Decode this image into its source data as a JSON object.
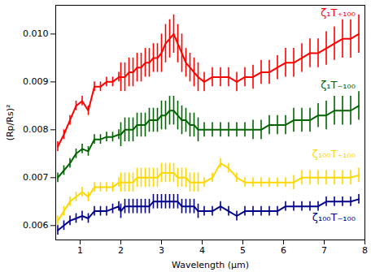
{
  "chart_data": {
    "type": "line",
    "x_label": "Wavelength (μm)",
    "y_label": "(Rp/Rs)²",
    "xlim": [
      0.4,
      8
    ],
    "ylim": [
      0.0057,
      0.0106
    ],
    "xticks": [
      1,
      2,
      3,
      4,
      5,
      6,
      7,
      8
    ],
    "yticks": [
      0.006,
      0.007,
      0.008,
      0.009,
      {
        "value": 0.01,
        "label": "0.010"
      }
    ],
    "grid": false,
    "x": [
      0.45,
      0.6,
      0.75,
      0.9,
      1.05,
      1.2,
      1.35,
      1.5,
      1.65,
      1.8,
      1.95,
      2.0,
      2.1,
      2.2,
      2.3,
      2.4,
      2.5,
      2.6,
      2.7,
      2.8,
      2.9,
      3.0,
      3.1,
      3.2,
      3.3,
      3.4,
      3.5,
      3.6,
      3.7,
      3.8,
      3.9,
      4.05,
      4.25,
      4.45,
      4.65,
      4.85,
      5.05,
      5.25,
      5.45,
      5.65,
      5.85,
      6.05,
      6.25,
      6.45,
      6.65,
      6.85,
      7.05,
      7.25,
      7.45,
      7.65,
      7.85
    ],
    "series": [
      {
        "name": "ζ₁T₊₁₀₀",
        "color": "#ff0000",
        "values": [
          0.00765,
          0.0079,
          0.0082,
          0.0085,
          0.0086,
          0.0084,
          0.0089,
          0.0089,
          0.009,
          0.009,
          0.0091,
          0.0091,
          0.0091,
          0.0092,
          0.0092,
          0.0093,
          0.0093,
          0.0094,
          0.0094,
          0.0095,
          0.0095,
          0.0096,
          0.0098,
          0.0099,
          0.01,
          0.0098,
          0.0096,
          0.0094,
          0.0093,
          0.0092,
          0.0091,
          0.009,
          0.0091,
          0.0091,
          0.0091,
          0.009,
          0.0091,
          0.0091,
          0.0092,
          0.0092,
          0.0093,
          0.0094,
          0.0094,
          0.0095,
          0.0096,
          0.0096,
          0.0097,
          0.0098,
          0.0099,
          0.0099,
          0.01
        ],
        "errors": [
          0.0001,
          0.0001,
          0.0001,
          0.0001,
          0.0001,
          0.0001,
          0.0001,
          0.0001,
          0.0001,
          0.0001,
          0.0001,
          0.0003,
          0.0003,
          0.0003,
          0.0003,
          0.0003,
          0.0003,
          0.0003,
          0.0003,
          0.0003,
          0.0003,
          0.0004,
          0.0004,
          0.0004,
          0.0004,
          0.0004,
          0.0004,
          0.0003,
          0.0003,
          0.0003,
          0.0003,
          0.0002,
          0.0002,
          0.0002,
          0.0002,
          0.0002,
          0.0002,
          0.00025,
          0.00025,
          0.00025,
          0.00025,
          0.0003,
          0.0003,
          0.0003,
          0.0003,
          0.0003,
          0.00035,
          0.00035,
          0.0004,
          0.0004,
          0.0004
        ]
      },
      {
        "name": "ζ₁T₋₁₀₀",
        "color": "#006400",
        "values": [
          0.007,
          0.00715,
          0.0073,
          0.0075,
          0.0076,
          0.00755,
          0.0078,
          0.0078,
          0.00785,
          0.00785,
          0.0079,
          0.0079,
          0.008,
          0.008,
          0.008,
          0.0081,
          0.0081,
          0.0081,
          0.0082,
          0.0082,
          0.0082,
          0.0083,
          0.0083,
          0.0084,
          0.0084,
          0.0083,
          0.0082,
          0.0082,
          0.0081,
          0.0081,
          0.008,
          0.008,
          0.008,
          0.008,
          0.008,
          0.008,
          0.008,
          0.008,
          0.008,
          0.0081,
          0.0081,
          0.0081,
          0.0082,
          0.0082,
          0.0082,
          0.0083,
          0.0083,
          0.0084,
          0.0084,
          0.0084,
          0.0085
        ],
        "errors": [
          0.0001,
          0.0001,
          0.0001,
          0.0001,
          0.0001,
          0.0001,
          0.0001,
          0.0001,
          0.0001,
          0.0001,
          0.0001,
          0.00025,
          0.00025,
          0.00025,
          0.00025,
          0.00025,
          0.00025,
          0.00025,
          0.00025,
          0.00025,
          0.00025,
          0.0003,
          0.0003,
          0.0003,
          0.0003,
          0.0003,
          0.0003,
          0.00025,
          0.00025,
          0.00025,
          0.00025,
          0.00015,
          0.00015,
          0.00015,
          0.00015,
          0.00015,
          0.00015,
          0.0002,
          0.0002,
          0.0002,
          0.0002,
          0.0002,
          0.00025,
          0.00025,
          0.00025,
          0.00025,
          0.0003,
          0.0003,
          0.0003,
          0.0003,
          0.0003
        ]
      },
      {
        "name": "ζ₁₀₀T₊₁₀₀",
        "color": "#ffd700",
        "values": [
          0.0061,
          0.0063,
          0.0065,
          0.0066,
          0.0067,
          0.0066,
          0.0068,
          0.0068,
          0.0068,
          0.0068,
          0.0069,
          0.0069,
          0.0069,
          0.0069,
          0.0069,
          0.007,
          0.007,
          0.007,
          0.007,
          0.007,
          0.007,
          0.0071,
          0.0071,
          0.0071,
          0.0071,
          0.007,
          0.007,
          0.007,
          0.0069,
          0.0069,
          0.0069,
          0.0069,
          0.007,
          0.0073,
          0.0072,
          0.007,
          0.0069,
          0.0069,
          0.0069,
          0.0069,
          0.0069,
          0.0069,
          0.0069,
          0.007,
          0.007,
          0.007,
          0.007,
          0.007,
          0.007,
          0.007,
          0.00705
        ],
        "errors": [
          0.0001,
          0.0001,
          0.0001,
          0.0001,
          0.0001,
          0.0001,
          0.0001,
          0.0001,
          0.0001,
          0.0001,
          0.0001,
          0.0002,
          0.0002,
          0.0002,
          0.0002,
          0.0002,
          0.0002,
          0.0002,
          0.0002,
          0.0002,
          0.0002,
          0.0002,
          0.0002,
          0.0002,
          0.0002,
          0.0002,
          0.0002,
          0.0002,
          0.0002,
          0.0002,
          0.0002,
          0.0001,
          0.0001,
          0.0001,
          0.0001,
          0.0001,
          0.0001,
          0.0001,
          0.0001,
          0.0001,
          0.0001,
          0.0001,
          0.00015,
          0.00015,
          0.00015,
          0.00015,
          0.00015,
          0.00015,
          0.00015,
          0.00015,
          0.00015
        ]
      },
      {
        "name": "ζ₁₀₀T₋₁₀₀",
        "color": "#00008b",
        "values": [
          0.0059,
          0.006,
          0.0061,
          0.00615,
          0.0062,
          0.00615,
          0.0063,
          0.0063,
          0.0063,
          0.00635,
          0.0064,
          0.0063,
          0.0064,
          0.0064,
          0.0064,
          0.0064,
          0.0064,
          0.0064,
          0.0064,
          0.0065,
          0.0065,
          0.0065,
          0.0065,
          0.0065,
          0.0065,
          0.0065,
          0.0064,
          0.0064,
          0.0064,
          0.0064,
          0.0063,
          0.0063,
          0.0063,
          0.0064,
          0.0063,
          0.0062,
          0.0063,
          0.0063,
          0.0063,
          0.0063,
          0.0063,
          0.0064,
          0.0064,
          0.0064,
          0.0064,
          0.0064,
          0.0065,
          0.0065,
          0.0065,
          0.0065,
          0.00655
        ],
        "errors": [
          0.0001,
          0.0001,
          0.0001,
          0.0001,
          0.0001,
          0.0001,
          0.0001,
          0.0001,
          0.0001,
          0.0001,
          0.0001,
          0.00015,
          0.00015,
          0.00015,
          0.00015,
          0.00015,
          0.00015,
          0.00015,
          0.00015,
          0.00015,
          0.00015,
          0.00015,
          0.00015,
          0.00015,
          0.00015,
          0.00015,
          0.00015,
          0.00015,
          0.00015,
          0.00015,
          0.00015,
          0.0001,
          0.0001,
          0.0001,
          0.0001,
          0.0001,
          0.0001,
          0.0001,
          0.0001,
          0.0001,
          0.0001,
          0.0001,
          0.0001,
          0.0001,
          0.0001,
          0.0001,
          0.0001,
          0.0001,
          0.0001,
          0.0001,
          0.0001
        ]
      }
    ]
  }
}
